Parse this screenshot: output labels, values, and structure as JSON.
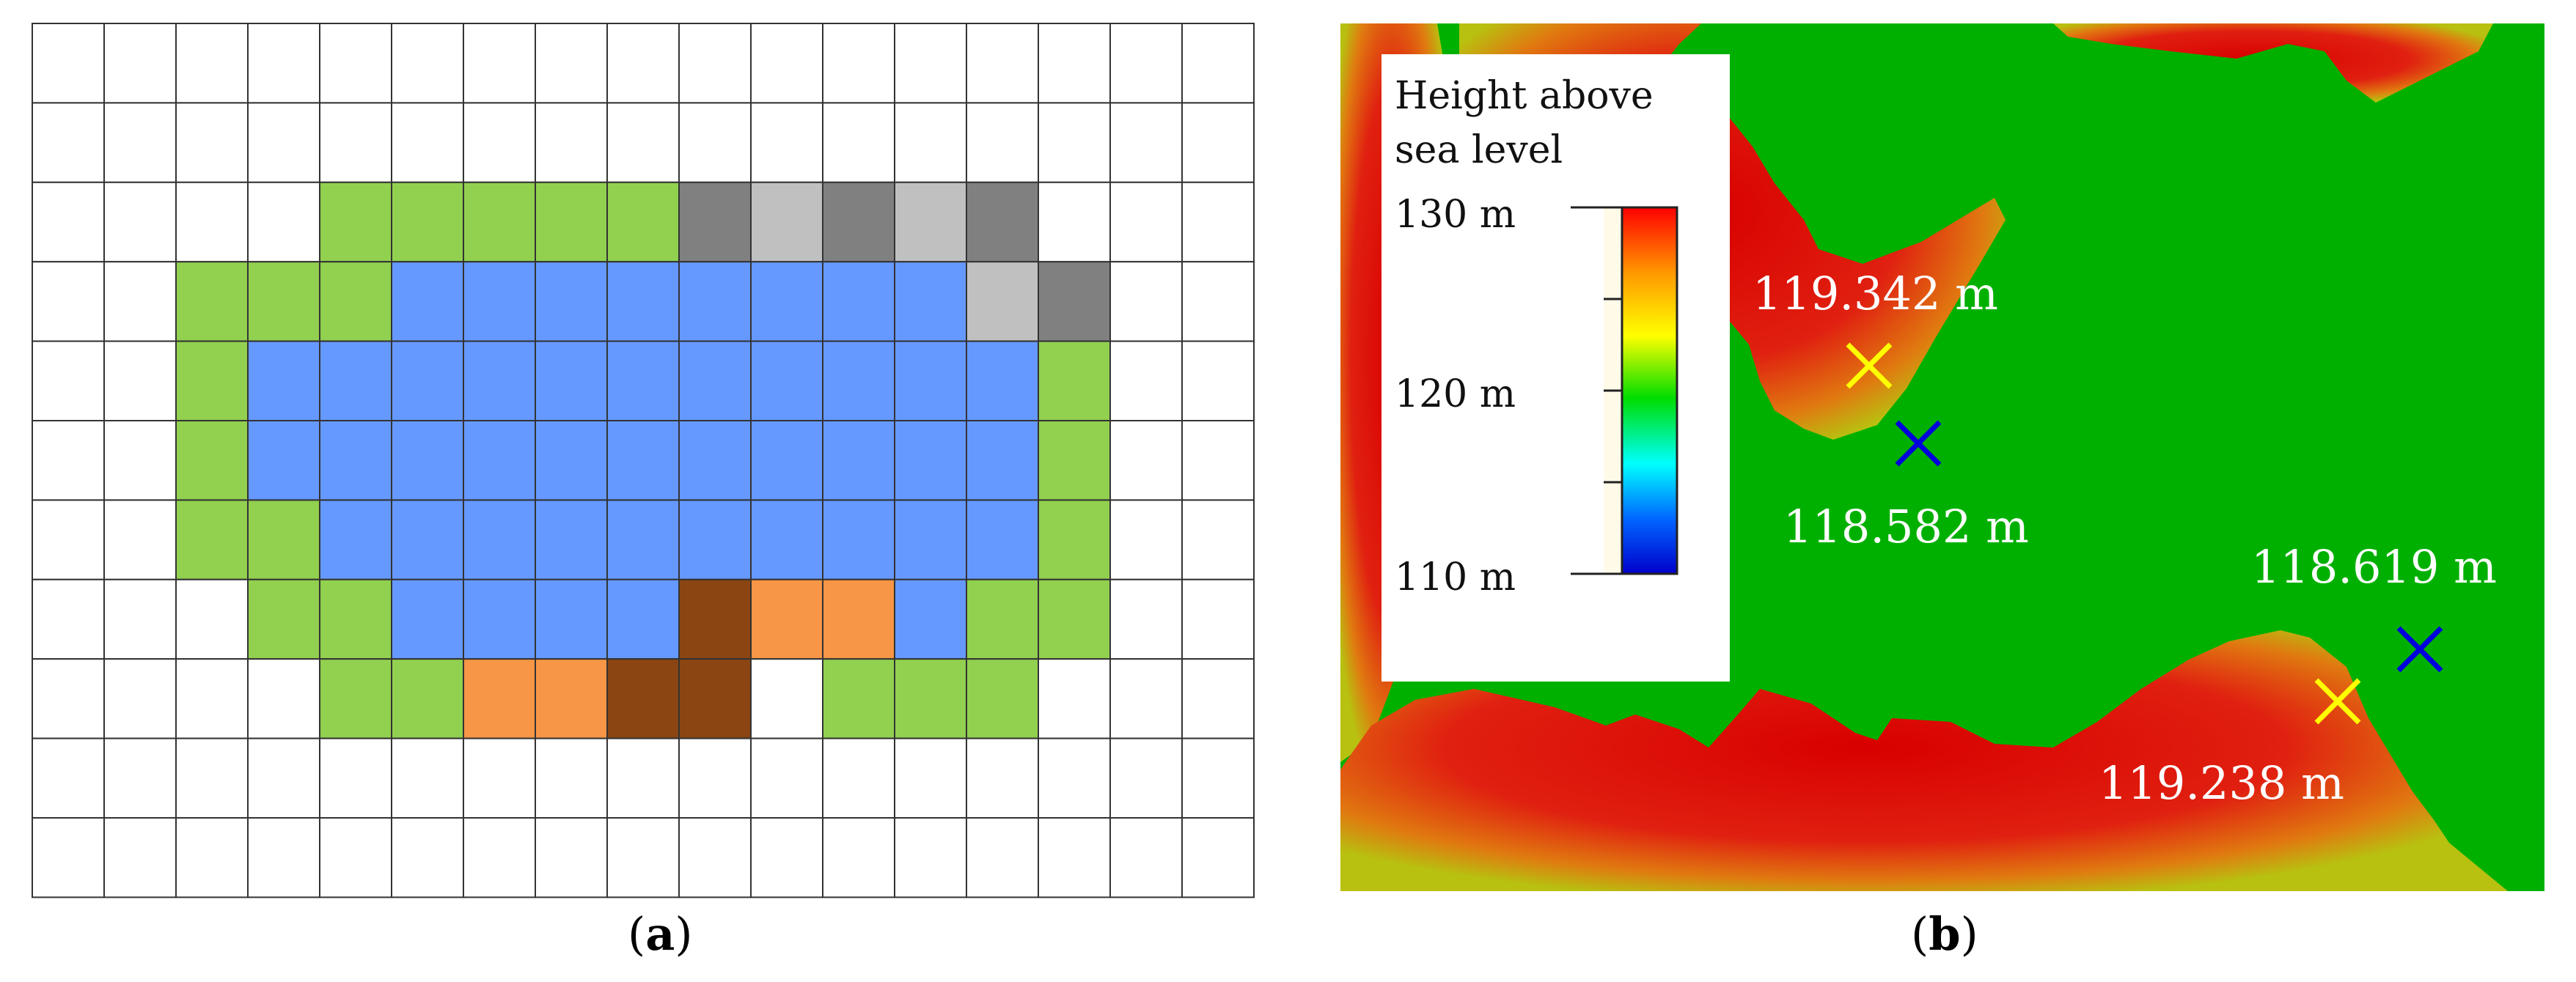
{
  "panel_a": {
    "caption_open": "(",
    "caption_letter": "a",
    "caption_close": ")",
    "columns": 17,
    "rows": 11,
    "legend_colors": {
      "B": "#6699ff",
      "G": "#92d050",
      "D": "#808080",
      "L": "#c0c0c0",
      "O": "#f79646",
      "R": "#8b4513",
      ".": "#ffffff"
    },
    "cells": [
      ".................",
      ".................",
      "....GGGGGDLDLD...",
      "..GGGBBBBBBBBLD..",
      "..GBBBBBBBBBBBG..",
      "..GBBBBBBBBBBBG..",
      "..GGBBBBBBBBBBG..",
      "...GGBBBBROOBGG..",
      "....GGOORR.GGG...",
      ".................",
      "................."
    ]
  },
  "panel_b": {
    "caption_open": "(",
    "caption_letter": "b",
    "caption_close": ")",
    "legend": {
      "title_line1": "Height above",
      "title_line2": "sea level",
      "max_label": "130 m",
      "mid_label": "120 m",
      "min_label": "110 m",
      "colorbar": [
        "#ff0000",
        "#ff9900",
        "#ffff00",
        "#00dd00",
        "#00ffff",
        "#0066ff",
        "#0000cc"
      ]
    },
    "measurements": [
      {
        "label": "119.342 m",
        "marker": "yellow"
      },
      {
        "label": "118.582 m",
        "marker": "blue"
      },
      {
        "label": "118.619 m",
        "marker": "blue"
      },
      {
        "label": "119.238 m",
        "marker": "yellow"
      }
    ],
    "colors": {
      "background": "#00b000",
      "terrain_high": "#dd1010",
      "terrain_mid": "#e8a020",
      "marker_yellow": "#ffff00",
      "marker_blue": "#0000dd"
    }
  }
}
